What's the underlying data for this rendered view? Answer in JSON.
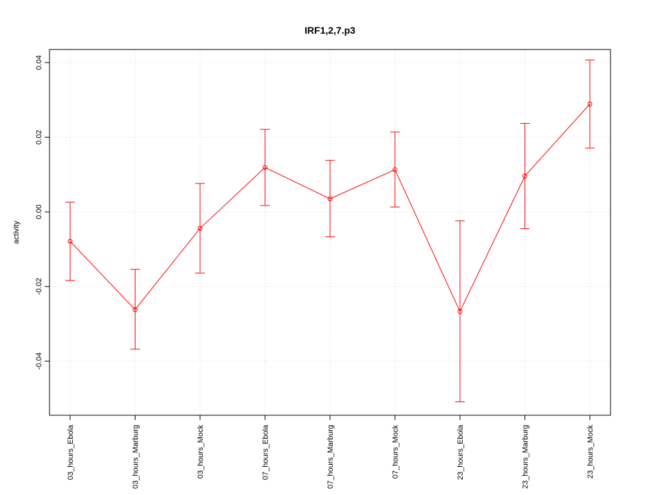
{
  "chart_data": {
    "type": "line",
    "title": "IRF1,2,7.p3",
    "xlabel": "",
    "ylabel": "activity",
    "categories": [
      "03_hours_Ebola",
      "03_hours_Marburg",
      "03_hours_Mock",
      "07_hours_Ebola",
      "07_hours_Marburg",
      "07_hours_Mock",
      "23_hours_Ebola",
      "23_hours_Marburg",
      "23_hours_Mock"
    ],
    "series": [
      {
        "values": [
          -0.0079,
          -0.0262,
          -0.0044,
          0.0119,
          0.0035,
          0.0113,
          -0.0267,
          0.0096,
          0.0289
        ],
        "upper": [
          0.0026,
          -0.0154,
          0.0076,
          0.0221,
          0.0138,
          0.0214,
          -0.0024,
          0.0237,
          0.0407
        ],
        "lower": [
          -0.0184,
          -0.0368,
          -0.0164,
          0.0017,
          -0.0067,
          0.0013,
          -0.0509,
          -0.0045,
          0.0171
        ]
      }
    ],
    "ylim": [
      -0.0545,
      0.0435
    ],
    "yticks": [
      -0.04,
      -0.02,
      0.0,
      0.02,
      0.04
    ],
    "ytick_labels": [
      "-0.04",
      "-0.02",
      "0.00",
      "0.02",
      "0.04"
    ],
    "grid": true,
    "color": "#ff0000",
    "grid_color": "#d3d3d3"
  }
}
